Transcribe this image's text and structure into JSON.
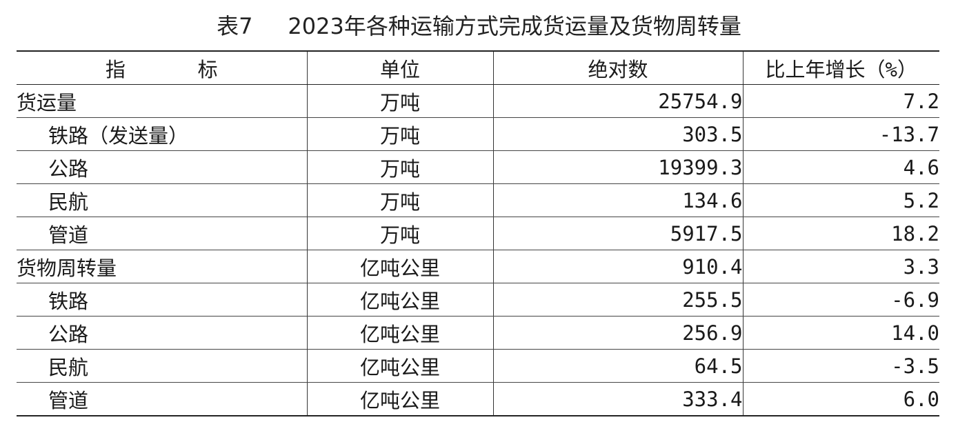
{
  "title": "表7     2023年各种运输方式完成货运量及货物周转量",
  "headers": {
    "indicator": "指      标",
    "unit": "单位",
    "absolute": "绝对数",
    "growth": "比上年增长（%）"
  },
  "rows": [
    {
      "indicator": "货运量",
      "sub": false,
      "unit": "万吨",
      "absolute": "25754.9",
      "growth": "7.2"
    },
    {
      "indicator": "铁路（发送量）",
      "sub": true,
      "unit": "万吨",
      "absolute": "303.5",
      "growth": "-13.7"
    },
    {
      "indicator": "公路",
      "sub": true,
      "unit": "万吨",
      "absolute": "19399.3",
      "growth": "4.6"
    },
    {
      "indicator": "民航",
      "sub": true,
      "unit": "万吨",
      "absolute": "134.6",
      "growth": "5.2"
    },
    {
      "indicator": "管道",
      "sub": true,
      "unit": "万吨",
      "absolute": "5917.5",
      "growth": "18.2"
    },
    {
      "indicator": "货物周转量",
      "sub": false,
      "unit": "亿吨公里",
      "absolute": "910.4",
      "growth": "3.3"
    },
    {
      "indicator": "铁路",
      "sub": true,
      "unit": "亿吨公里",
      "absolute": "255.5",
      "growth": "-6.9"
    },
    {
      "indicator": "公路",
      "sub": true,
      "unit": "亿吨公里",
      "absolute": "256.9",
      "growth": "14.0"
    },
    {
      "indicator": "民航",
      "sub": true,
      "unit": "亿吨公里",
      "absolute": "64.5",
      "growth": "-3.5"
    },
    {
      "indicator": "管道",
      "sub": true,
      "unit": "亿吨公里",
      "absolute": "333.4",
      "growth": "6.0"
    }
  ]
}
